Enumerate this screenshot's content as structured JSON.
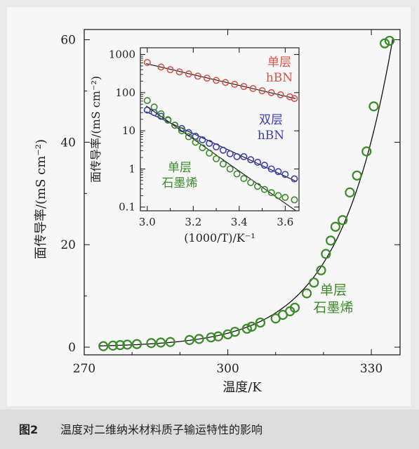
{
  "figure": {
    "caption_label": "图2",
    "caption_text": "温度对二维纳米材料质子输运特性的影响"
  },
  "colors": {
    "green": "#3b8a2a",
    "red": "#d9534a",
    "blue": "#3a3fb3",
    "line": "#111111"
  },
  "chart_data": [
    {
      "type": "scatter",
      "title": "",
      "xlabel": "温度/K",
      "ylabel": "面传导率/(mS cm⁻²)",
      "xlim": [
        270,
        336
      ],
      "ylim": [
        -1.5,
        62
      ],
      "xticks": [
        "270",
        "300",
        "330"
      ],
      "yticks": [
        "0",
        "20",
        "40",
        "60"
      ],
      "grid": false,
      "annotations": [
        "单层",
        "石墨烯"
      ],
      "series": [
        {
          "color": "green",
          "marker": "open-circle",
          "fit": "exponential",
          "x": [
            274.0,
            276.0,
            277.5,
            279.0,
            281.0,
            284.0,
            286.0,
            288.0,
            292.0,
            294.0,
            296.5,
            298.0,
            300.0,
            301.5,
            304.0,
            305.0,
            306.8,
            310.0,
            311.5,
            313.0,
            314.0,
            316.5,
            318.0,
            319.5,
            320.5,
            321.5,
            322.5,
            324.0,
            325.5,
            327.0,
            329.0,
            330.5,
            332.8,
            333.8
          ],
          "y": [
            0.2,
            0.3,
            0.4,
            0.5,
            0.6,
            0.8,
            0.9,
            1.0,
            1.4,
            1.6,
            1.9,
            2.1,
            2.5,
            3.0,
            3.6,
            4.0,
            4.8,
            5.6,
            6.3,
            7.0,
            7.7,
            10.5,
            12.6,
            15.0,
            18.2,
            20.8,
            23.5,
            24.8,
            30.2,
            33.5,
            38.2,
            47.0,
            59.3,
            59.8
          ]
        }
      ]
    },
    {
      "type": "scatter",
      "title": "",
      "xlabel": "(1000/T)/K⁻¹",
      "ylabel": "面传导率/(mS cm⁻²)",
      "xlim": [
        2.97,
        3.66
      ],
      "ylim": [
        0.08,
        1500
      ],
      "yscale": "log",
      "xticks": [
        "3.0",
        "3.2",
        "3.4",
        "3.6"
      ],
      "yticks": [
        "0.1",
        "1",
        "10",
        "100",
        "1000"
      ],
      "grid": false,
      "series": [
        {
          "name": "单层 hBN",
          "label_lines": [
            "单层",
            "hBN"
          ],
          "color": "red",
          "marker": "open-circle",
          "fit": "exponential",
          "x": [
            3.0,
            3.06,
            3.1,
            3.14,
            3.18,
            3.22,
            3.26,
            3.3,
            3.34,
            3.38,
            3.42,
            3.46,
            3.5,
            3.54,
            3.58,
            3.62,
            3.64
          ],
          "y": [
            620,
            470,
            400,
            350,
            310,
            270,
            240,
            210,
            185,
            165,
            145,
            128,
            112,
            100,
            88,
            78,
            70
          ]
        },
        {
          "name": "双层 hBN",
          "label_lines": [
            "双层",
            "hBN"
          ],
          "color": "blue",
          "marker": "open-circle",
          "fit": "exponential",
          "x": [
            3.0,
            3.03,
            3.06,
            3.09,
            3.12,
            3.15,
            3.18,
            3.21,
            3.24,
            3.27,
            3.3,
            3.33,
            3.36,
            3.39,
            3.42,
            3.45,
            3.48,
            3.51,
            3.54,
            3.57,
            3.6,
            3.64
          ],
          "y": [
            35,
            30,
            24,
            19,
            14,
            11.5,
            9.0,
            7.2,
            5.8,
            4.7,
            3.8,
            3.1,
            2.5,
            2.1,
            2.1,
            1.75,
            1.5,
            1.25,
            1.0,
            0.85,
            0.72,
            0.55
          ]
        },
        {
          "name": "单层 石墨烯",
          "label_lines": [
            "单层",
            "石墨烯"
          ],
          "color": "green",
          "marker": "open-circle",
          "fit": "exponential",
          "x": [
            3.0,
            3.03,
            3.06,
            3.09,
            3.12,
            3.15,
            3.18,
            3.21,
            3.24,
            3.27,
            3.3,
            3.33,
            3.36,
            3.39,
            3.42,
            3.45,
            3.48,
            3.51,
            3.54,
            3.57,
            3.6,
            3.64
          ],
          "y": [
            62,
            42,
            28,
            19.5,
            14,
            10,
            7.0,
            5.0,
            3.6,
            2.6,
            1.85,
            1.35,
            1.0,
            0.74,
            0.56,
            0.44,
            0.35,
            0.29,
            0.24,
            0.2,
            0.18,
            0.155
          ]
        }
      ]
    }
  ]
}
